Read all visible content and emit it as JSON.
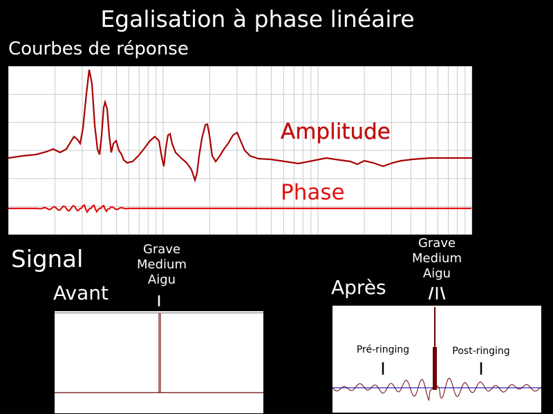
{
  "title": "Egalisation à phase linéaire",
  "curves_heading": "Courbes de réponse",
  "amplitude_label": "Amplitude",
  "phase_label": "Phase",
  "signal_heading": "Signal",
  "before": {
    "label": "Avant",
    "bands": [
      "Grave",
      "Medium",
      "Aigu"
    ]
  },
  "after": {
    "label": "Après",
    "bands": [
      "Grave",
      "Medium",
      "Aigu"
    ],
    "pre_ringing": "Pré-ringing",
    "post_ringing": "Post-ringing"
  },
  "colors": {
    "background": "#000000",
    "text": "#ffffff",
    "amplitude": "#b00000",
    "phase": "#e41010",
    "grid": "#c8c8c8",
    "impulse": "#6a0000",
    "baseline": "#2424c8"
  }
}
